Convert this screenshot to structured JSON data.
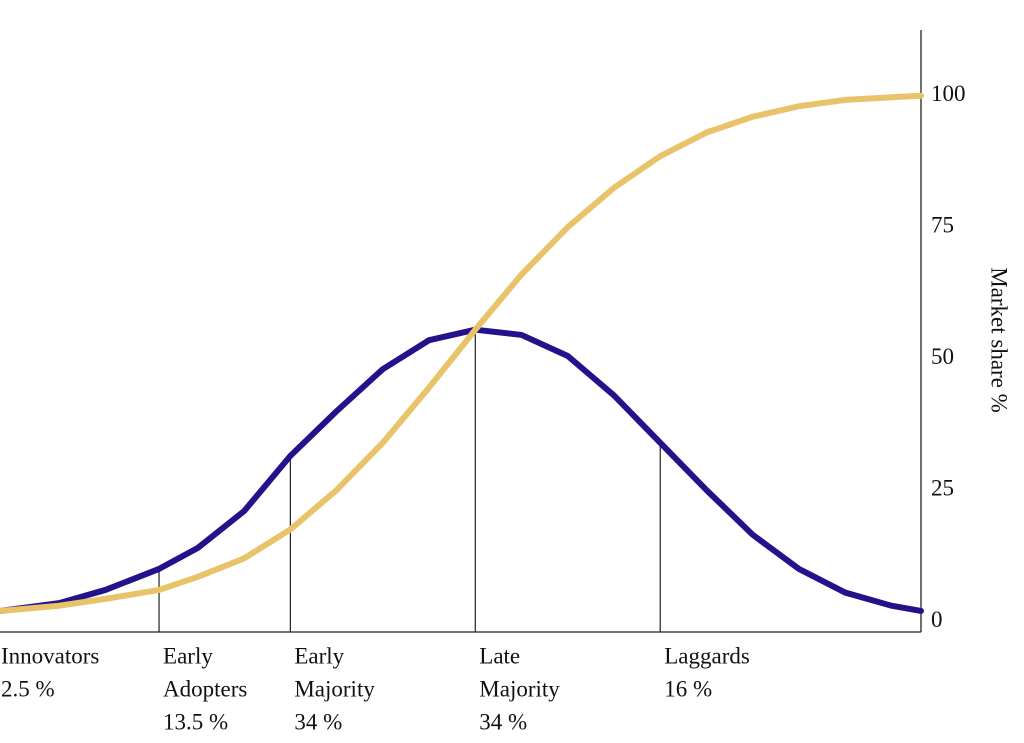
{
  "chart_data": {
    "type": "line",
    "x": [
      -2.57,
      -2.25,
      -2,
      -1.71,
      -1.5,
      -1.25,
      -1,
      -0.75,
      -0.5,
      -0.25,
      0,
      0.25,
      0.5,
      0.75,
      1,
      1.25,
      1.5,
      1.75,
      2,
      2.25,
      2.41
    ],
    "series": [
      {
        "color": "#22128c",
        "values": [
          2,
          3.5,
          6,
          10,
          14,
          21,
          31.5,
          40,
          48,
          53.5,
          55.5,
          54.5,
          50.5,
          43,
          34,
          25,
          16.5,
          10,
          5.5,
          3,
          2
        ]
      },
      {
        "color": "#e8c36a",
        "values": [
          2,
          3,
          4.3,
          6,
          8.5,
          12,
          17.5,
          25,
          34,
          44.5,
          55.5,
          66,
          75,
          82.5,
          88.5,
          93,
          96,
          98,
          99.2,
          99.7,
          100
        ]
      }
    ],
    "xlim": [
      -2.57,
      2.41
    ],
    "ylim": [
      -2,
      112.5
    ],
    "yticks": [
      0,
      25,
      50,
      75,
      100
    ],
    "y_axis_side": "right",
    "y_label": "Market share %",
    "dividers": [
      -1.71,
      -1,
      0,
      1
    ],
    "segments": {
      "names": [
        [
          "Innovators"
        ],
        [
          "Early",
          "Adopters"
        ],
        [
          "Early",
          "Majority"
        ],
        [
          "Late",
          "Majority"
        ],
        [
          "Laggards"
        ]
      ],
      "values": [
        2.5,
        13.5,
        34,
        34,
        16
      ],
      "value_labels": [
        "2.5 %",
        "13.5 %",
        "34 %",
        "34 %",
        "16 %"
      ]
    }
  }
}
